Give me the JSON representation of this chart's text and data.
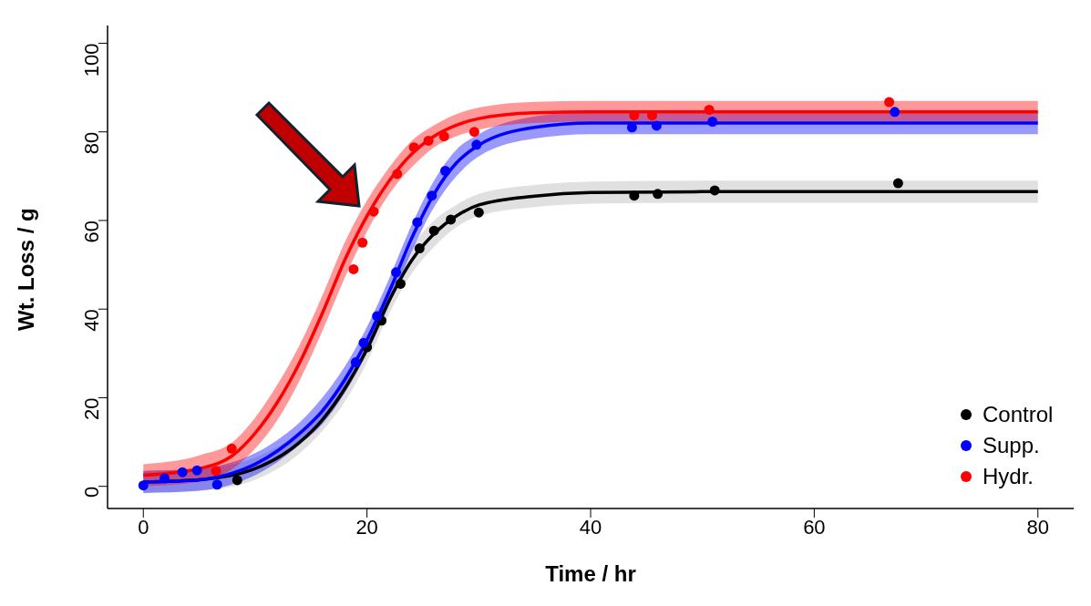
{
  "chart_data": {
    "type": "scatter",
    "xlabel": "Time / hr",
    "ylabel": "Wt. Loss / g",
    "xlim": [
      -3.2,
      83.2
    ],
    "ylim": [
      -5,
      104
    ],
    "xticks": [
      0,
      20,
      40,
      60,
      80
    ],
    "yticks": [
      0,
      20,
      40,
      60,
      80,
      100
    ],
    "grid": false,
    "legend": "bottom right",
    "marker": "circle",
    "series": [
      {
        "type": "line",
        "marker": "none",
        "color": "#000000",
        "x": [
          0,
          5,
          10,
          14,
          16,
          18,
          20,
          22,
          24,
          26,
          28,
          30,
          35,
          40,
          50,
          60,
          70,
          80
        ],
        "values": [
          1,
          1.5,
          4,
          10,
          15,
          22,
          31,
          42,
          51,
          57,
          61,
          63.5,
          65.5,
          66.3,
          66.5,
          66.5,
          66.5,
          66.5
        ],
        "lower": [
          -1.5,
          -1,
          1.5,
          7.5,
          12.5,
          19,
          28,
          39,
          48,
          54,
          58.5,
          61,
          63,
          63.8,
          64,
          64,
          64,
          64
        ],
        "upper": [
          3.5,
          4,
          6.5,
          12.5,
          17.5,
          25,
          34,
          45,
          54,
          60,
          63.5,
          66,
          68,
          68.8,
          69,
          69,
          69,
          69
        ]
      },
      {
        "type": "line",
        "marker": "none",
        "color": "#0000ff",
        "x": [
          0,
          5,
          8,
          10,
          12,
          14,
          16,
          18,
          20,
          22,
          24,
          26,
          28,
          30,
          35,
          40,
          50,
          60,
          70,
          80
        ],
        "values": [
          1,
          1.5,
          3,
          5,
          8,
          12,
          17,
          24,
          33,
          44,
          56,
          66,
          73,
          77,
          81,
          82,
          82,
          82,
          82,
          82
        ],
        "lower": [
          -1.5,
          -1,
          0.5,
          2.5,
          5.5,
          9.5,
          14,
          21,
          30,
          41,
          53,
          63,
          70,
          74.5,
          78.5,
          79.5,
          79.5,
          79.5,
          79.5,
          79.5
        ],
        "upper": [
          3.5,
          4,
          5.5,
          7.5,
          10.5,
          14.5,
          20,
          27,
          36,
          47,
          59,
          69,
          76,
          79.5,
          83.5,
          84.5,
          84.5,
          84.5,
          84.5,
          84.5
        ]
      },
      {
        "type": "line",
        "marker": "none",
        "color": "#ff0000",
        "x": [
          0,
          5,
          8,
          10,
          12,
          14,
          16,
          18,
          20,
          22,
          24,
          26,
          28,
          30,
          35,
          40,
          50,
          60,
          70,
          80
        ],
        "values": [
          2.5,
          4,
          7,
          12,
          19,
          28,
          39,
          51,
          61,
          69,
          75,
          79,
          81.5,
          83,
          84.3,
          84.5,
          84.5,
          84.5,
          84.5,
          84.5
        ],
        "lower": [
          0,
          1,
          4,
          8.5,
          15,
          24,
          35,
          47,
          57.5,
          66,
          72,
          76.5,
          79,
          80.5,
          82,
          82.3,
          82.3,
          82.3,
          82.3,
          82.3
        ],
        "upper": [
          5,
          7,
          10,
          15.5,
          23,
          32,
          43,
          55,
          64.5,
          72,
          78,
          81.5,
          84,
          85.5,
          86.8,
          87,
          87,
          87,
          87,
          87
        ]
      },
      {
        "name": "Control",
        "color": "#000000",
        "x": [
          8.4,
          20,
          21.3,
          23,
          24.7,
          26,
          27.5,
          30,
          43.9,
          46,
          51.1,
          67.5
        ],
        "values": [
          1.4,
          31.4,
          37.4,
          45.7,
          53.7,
          57.7,
          60.2,
          61.8,
          65.6,
          66,
          66.8,
          68.4
        ]
      },
      {
        "name": "Supp.",
        "color": "#0000ff",
        "x": [
          0,
          1.9,
          3.5,
          4.8,
          6.6,
          19,
          19.7,
          20.9,
          22.6,
          24.5,
          25.8,
          27,
          29.8,
          43.7,
          45.9,
          50.9,
          67.2
        ],
        "values": [
          0.2,
          1.8,
          3.2,
          3.6,
          0.4,
          28,
          32.4,
          38.4,
          48.3,
          59.6,
          65.6,
          71.2,
          77.1,
          81,
          81.4,
          82.3,
          84.5
        ]
      },
      {
        "name": "Hydr.",
        "color": "#ff0000",
        "x": [
          6.5,
          7.9,
          18.8,
          19.6,
          20.6,
          22.7,
          24.2,
          25.5,
          26.9,
          29.6,
          43.9,
          45.5,
          50.6,
          66.7
        ],
        "values": [
          3.5,
          8.5,
          49,
          55,
          62,
          70.5,
          76.5,
          78,
          79,
          80,
          83.7,
          83.7,
          85,
          86.7
        ]
      }
    ]
  }
}
